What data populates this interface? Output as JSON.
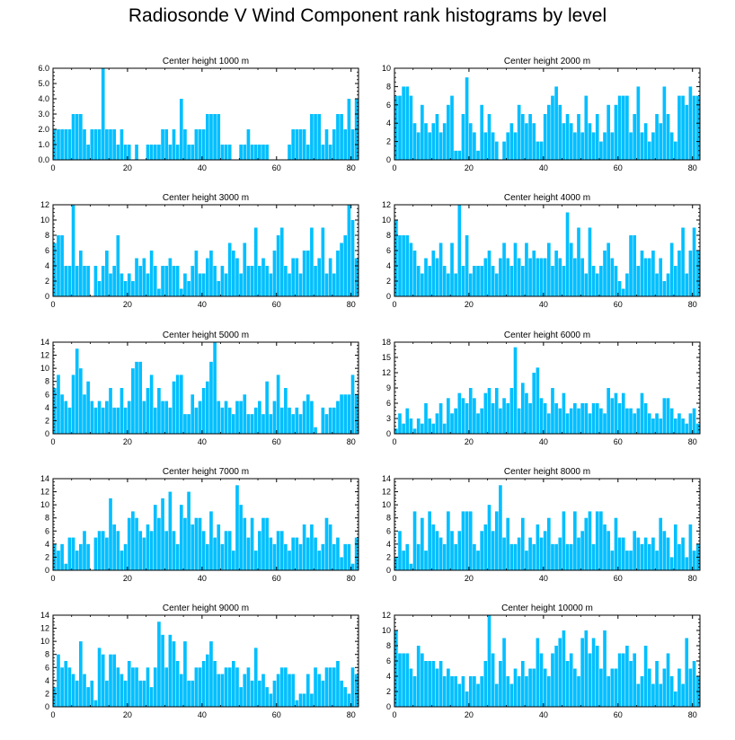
{
  "title": "Radiosonde V Wind Component rank histograms by level",
  "bar_color": "#00bfff",
  "chart_data": [
    {
      "type": "bar",
      "title": "Center height 1000 m",
      "xlim": [
        0,
        82
      ],
      "ylim": [
        0,
        6
      ],
      "xticks": [
        "0",
        "20",
        "40",
        "60",
        "80"
      ],
      "yticks": [
        "0.0",
        "1.0",
        "2.0",
        "3.0",
        "4.0",
        "5.0",
        "6.0"
      ],
      "values": [
        2,
        2,
        2,
        2,
        2,
        3,
        3,
        3,
        2,
        1,
        2,
        2,
        2,
        6,
        2,
        2,
        2,
        1,
        2,
        1,
        1,
        0,
        1,
        0,
        0,
        1,
        1,
        1,
        1,
        2,
        2,
        1,
        2,
        1,
        4,
        2,
        1,
        1,
        2,
        2,
        2,
        3,
        3,
        3,
        3,
        1,
        1,
        1,
        0,
        0,
        1,
        1,
        2,
        1,
        1,
        1,
        1,
        1,
        0,
        0,
        0,
        0,
        0,
        1,
        2,
        2,
        2,
        2,
        1,
        3,
        3,
        3,
        1,
        2,
        1,
        2,
        3,
        3,
        2,
        4,
        2,
        4
      ]
    },
    {
      "type": "bar",
      "title": "Center height 2000 m",
      "xlim": [
        0,
        82
      ],
      "ylim": [
        0,
        10
      ],
      "xticks": [
        "0",
        "20",
        "40",
        "60",
        "80"
      ],
      "yticks": [
        "0",
        "2",
        "4",
        "6",
        "8",
        "10"
      ],
      "values": [
        7,
        7,
        8,
        8,
        7,
        4,
        3,
        6,
        4,
        3,
        4,
        5,
        3,
        4,
        6,
        7,
        1,
        1,
        5,
        9,
        4,
        3,
        1,
        6,
        3,
        5,
        3,
        2,
        0,
        2,
        3,
        4,
        3,
        6,
        5,
        4,
        5,
        4,
        2,
        2,
        5,
        6,
        7,
        8,
        6,
        4,
        5,
        4,
        3,
        5,
        3,
        7,
        4,
        3,
        5,
        2,
        3,
        6,
        3,
        6,
        7,
        7,
        7,
        3,
        5,
        8,
        3,
        4,
        2,
        3,
        5,
        4,
        8,
        5,
        3,
        2,
        7,
        7,
        6,
        8,
        7,
        7
      ]
    },
    {
      "type": "bar",
      "title": "Center height 3000 m",
      "xlim": [
        0,
        82
      ],
      "ylim": [
        0,
        12
      ],
      "xticks": [
        "0",
        "20",
        "40",
        "60",
        "80"
      ],
      "yticks": [
        "0",
        "2",
        "4",
        "6",
        "8",
        "10",
        "12"
      ],
      "values": [
        7,
        8,
        8,
        4,
        4,
        12,
        4,
        6,
        4,
        4,
        0,
        4,
        2,
        4,
        6,
        3,
        4,
        8,
        3,
        2,
        3,
        2,
        5,
        4,
        5,
        3,
        6,
        4,
        1,
        4,
        4,
        5,
        4,
        4,
        1,
        3,
        2,
        4,
        6,
        3,
        3,
        5,
        6,
        4,
        2,
        4,
        3,
        7,
        6,
        5,
        3,
        7,
        4,
        4,
        9,
        4,
        5,
        4,
        3,
        6,
        8,
        9,
        4,
        3,
        5,
        5,
        3,
        6,
        6,
        9,
        4,
        5,
        9,
        3,
        5,
        3,
        6,
        7,
        8,
        12,
        10,
        5
      ]
    },
    {
      "type": "bar",
      "title": "Center height 4000 m",
      "xlim": [
        0,
        82
      ],
      "ylim": [
        0,
        12
      ],
      "xticks": [
        "0",
        "20",
        "40",
        "60",
        "80"
      ],
      "yticks": [
        "0",
        "2",
        "4",
        "6",
        "8",
        "10",
        "12"
      ],
      "values": [
        10,
        8,
        8,
        8,
        7,
        6,
        4,
        3,
        5,
        4,
        6,
        5,
        7,
        4,
        3,
        7,
        3,
        12,
        4,
        8,
        3,
        4,
        4,
        4,
        5,
        6,
        4,
        3,
        5,
        7,
        5,
        4,
        7,
        5,
        4,
        7,
        5,
        6,
        5,
        5,
        5,
        7,
        4,
        6,
        5,
        4,
        11,
        7,
        5,
        9,
        5,
        3,
        9,
        4,
        3,
        4,
        6,
        7,
        5,
        4,
        2,
        1,
        3,
        8,
        8,
        4,
        6,
        5,
        5,
        6,
        3,
        5,
        2,
        3,
        7,
        4,
        6,
        9,
        3,
        6,
        9,
        6
      ]
    },
    {
      "type": "bar",
      "title": "Center height 5000 m",
      "xlim": [
        0,
        82
      ],
      "ylim": [
        0,
        14
      ],
      "xticks": [
        "0",
        "20",
        "40",
        "60",
        "80"
      ],
      "yticks": [
        "0",
        "2",
        "4",
        "6",
        "8",
        "10",
        "12",
        "14"
      ],
      "values": [
        7,
        9,
        6,
        5,
        4,
        9,
        13,
        10,
        6,
        8,
        5,
        4,
        5,
        4,
        5,
        7,
        4,
        4,
        7,
        4,
        5,
        10,
        11,
        11,
        5,
        7,
        9,
        4,
        7,
        5,
        5,
        4,
        8,
        9,
        9,
        3,
        3,
        6,
        4,
        5,
        7,
        8,
        11,
        14,
        5,
        4,
        5,
        4,
        3,
        5,
        5,
        6,
        3,
        3,
        4,
        5,
        3,
        8,
        3,
        5,
        9,
        4,
        7,
        4,
        3,
        4,
        3,
        5,
        6,
        5,
        1,
        0,
        4,
        3,
        4,
        4,
        5,
        6,
        6,
        6,
        9,
        6
      ]
    },
    {
      "type": "bar",
      "title": "Center height 6000 m",
      "xlim": [
        0,
        82
      ],
      "ylim": [
        0,
        18
      ],
      "xticks": [
        "0",
        "20",
        "40",
        "60",
        "80"
      ],
      "yticks": [
        "0",
        "3",
        "6",
        "9",
        "12",
        "15",
        "18"
      ],
      "values": [
        1,
        4,
        2,
        5,
        3,
        1,
        3,
        2,
        6,
        3,
        2,
        4,
        6,
        2,
        7,
        4,
        5,
        8,
        7,
        6,
        9,
        7,
        4,
        5,
        8,
        9,
        6,
        9,
        5,
        7,
        6,
        9,
        17,
        5,
        10,
        8,
        6,
        12,
        13,
        7,
        6,
        4,
        9,
        6,
        5,
        8,
        4,
        5,
        6,
        5,
        6,
        6,
        4,
        6,
        6,
        5,
        4,
        9,
        7,
        8,
        6,
        8,
        5,
        5,
        4,
        5,
        8,
        6,
        4,
        3,
        4,
        3,
        7,
        7,
        5,
        3,
        4,
        3,
        2,
        4,
        5,
        2
      ]
    },
    {
      "type": "bar",
      "title": "Center height 7000 m",
      "xlim": [
        0,
        82
      ],
      "ylim": [
        0,
        14
      ],
      "xticks": [
        "0",
        "20",
        "40",
        "60",
        "80"
      ],
      "yticks": [
        "0",
        "2",
        "4",
        "6",
        "8",
        "10",
        "12",
        "14"
      ],
      "values": [
        4,
        3,
        4,
        1,
        5,
        5,
        3,
        4,
        6,
        4,
        0,
        5,
        6,
        6,
        5,
        11,
        7,
        6,
        3,
        4,
        8,
        9,
        8,
        6,
        5,
        7,
        6,
        10,
        8,
        11,
        6,
        12,
        6,
        4,
        10,
        8,
        12,
        7,
        8,
        8,
        6,
        4,
        9,
        5,
        7,
        4,
        6,
        6,
        3,
        13,
        10,
        8,
        5,
        8,
        3,
        6,
        8,
        8,
        5,
        4,
        6,
        6,
        4,
        3,
        5,
        5,
        4,
        7,
        5,
        7,
        5,
        3,
        4,
        8,
        7,
        4,
        5,
        2,
        4,
        4,
        1,
        5
      ]
    },
    {
      "type": "bar",
      "title": "Center height 8000 m",
      "xlim": [
        0,
        82
      ],
      "ylim": [
        0,
        14
      ],
      "xticks": [
        "0",
        "20",
        "40",
        "60",
        "80"
      ],
      "yticks": [
        "0",
        "2",
        "4",
        "6",
        "8",
        "10",
        "12",
        "14"
      ],
      "values": [
        2,
        6,
        3,
        4,
        1,
        9,
        4,
        8,
        3,
        9,
        7,
        6,
        5,
        4,
        9,
        6,
        4,
        6,
        9,
        9,
        9,
        4,
        3,
        6,
        7,
        10,
        6,
        9,
        13,
        5,
        8,
        4,
        4,
        5,
        8,
        3,
        5,
        4,
        7,
        5,
        6,
        8,
        4,
        4,
        5,
        9,
        4,
        4,
        9,
        5,
        6,
        8,
        9,
        4,
        9,
        9,
        7,
        6,
        3,
        8,
        5,
        5,
        3,
        3,
        6,
        5,
        4,
        5,
        4,
        5,
        3,
        8,
        6,
        5,
        2,
        7,
        4,
        5,
        2,
        7,
        3,
        4
      ]
    },
    {
      "type": "bar",
      "title": "Center height 9000 m",
      "xlim": [
        0,
        82
      ],
      "ylim": [
        0,
        14
      ],
      "xticks": [
        "0",
        "20",
        "40",
        "60",
        "80"
      ],
      "yticks": [
        "0",
        "2",
        "4",
        "6",
        "8",
        "10",
        "12",
        "14"
      ],
      "values": [
        3,
        8,
        6,
        7,
        6,
        5,
        4,
        10,
        5,
        3,
        4,
        1,
        9,
        8,
        4,
        8,
        8,
        6,
        5,
        4,
        7,
        6,
        6,
        4,
        4,
        6,
        3,
        6,
        13,
        11,
        6,
        11,
        10,
        7,
        5,
        10,
        4,
        4,
        6,
        6,
        7,
        8,
        10,
        7,
        5,
        5,
        6,
        6,
        7,
        6,
        3,
        5,
        6,
        4,
        9,
        4,
        5,
        3,
        2,
        4,
        5,
        6,
        6,
        5,
        5,
        1,
        2,
        2,
        5,
        2,
        6,
        5,
        4,
        6,
        6,
        6,
        7,
        4,
        3,
        2,
        6,
        5
      ]
    },
    {
      "type": "bar",
      "title": "Center height 10000 m",
      "xlim": [
        0,
        82
      ],
      "ylim": [
        0,
        12
      ],
      "xticks": [
        "0",
        "20",
        "40",
        "60",
        "80"
      ],
      "yticks": [
        "0",
        "2",
        "4",
        "6",
        "8",
        "10",
        "12"
      ],
      "values": [
        10,
        7,
        7,
        7,
        5,
        4,
        8,
        7,
        6,
        6,
        6,
        5,
        6,
        4,
        5,
        4,
        4,
        3,
        4,
        2,
        4,
        4,
        3,
        4,
        6,
        12,
        7,
        3,
        6,
        9,
        4,
        3,
        5,
        4,
        6,
        4,
        5,
        5,
        9,
        7,
        5,
        4,
        7,
        8,
        9,
        10,
        6,
        7,
        5,
        4,
        9,
        10,
        7,
        9,
        8,
        5,
        10,
        4,
        5,
        5,
        7,
        7,
        8,
        6,
        7,
        3,
        4,
        8,
        5,
        3,
        6,
        3,
        5,
        7,
        4,
        2,
        5,
        3,
        9,
        5,
        6,
        4
      ]
    }
  ]
}
